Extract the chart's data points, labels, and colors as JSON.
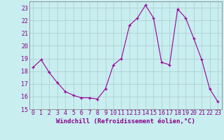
{
  "x": [
    0,
    1,
    2,
    3,
    4,
    5,
    6,
    7,
    8,
    9,
    10,
    11,
    12,
    13,
    14,
    15,
    16,
    17,
    18,
    19,
    20,
    21,
    22,
    23
  ],
  "y": [
    18.3,
    18.9,
    17.9,
    17.1,
    16.4,
    16.1,
    15.9,
    15.9,
    15.8,
    16.6,
    18.5,
    19.0,
    21.6,
    22.2,
    23.2,
    22.2,
    18.7,
    18.5,
    22.9,
    22.2,
    20.6,
    18.9,
    16.6,
    15.6
  ],
  "bg_color": "#c8eef0",
  "line_color": "#990099",
  "marker_color": "#990099",
  "grid_color": "#aacccc",
  "xlabel": "Windchill (Refroidissement éolien,°C)",
  "ylim": [
    15,
    23.5
  ],
  "xlim": [
    -0.5,
    23.5
  ],
  "yticks": [
    15,
    16,
    17,
    18,
    19,
    20,
    21,
    22,
    23
  ],
  "xticks": [
    0,
    1,
    2,
    3,
    4,
    5,
    6,
    7,
    8,
    9,
    10,
    11,
    12,
    13,
    14,
    15,
    16,
    17,
    18,
    19,
    20,
    21,
    22,
    23
  ],
  "xlabel_fontsize": 6.5,
  "tick_fontsize": 6.0
}
